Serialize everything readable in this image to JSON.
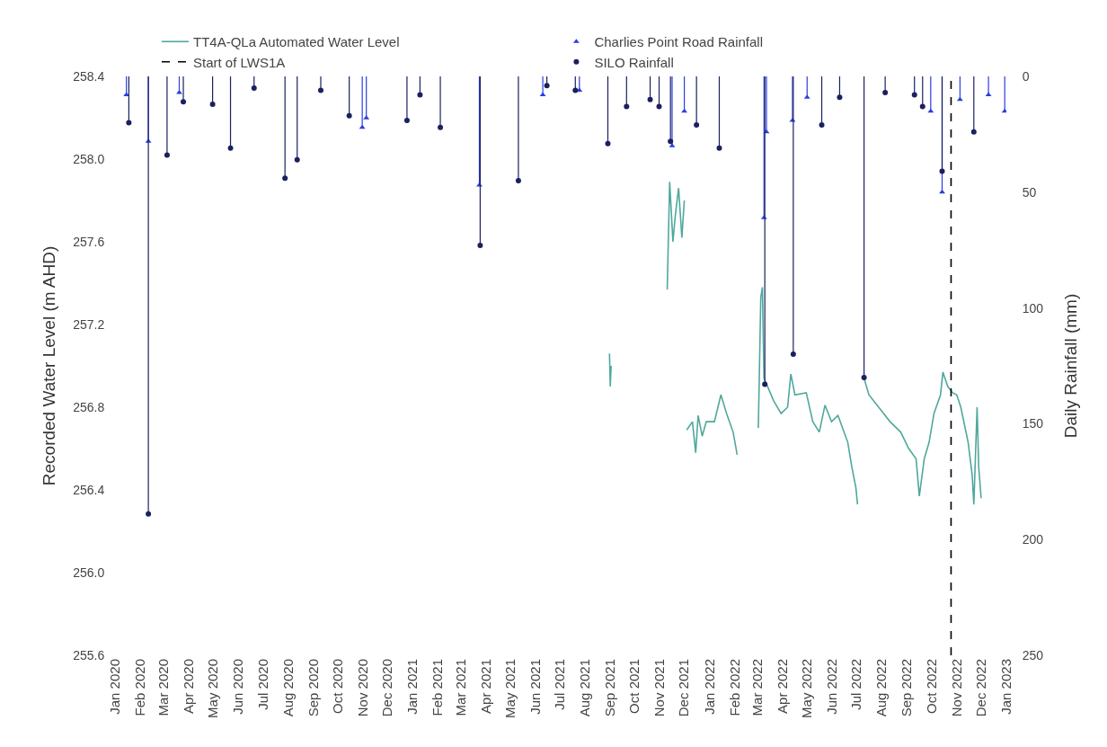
{
  "chart_data": {
    "type": "line",
    "xlabel": null,
    "ylabel": "Recorded Water Level (m AHD)",
    "y2label": "Daily Rainfall (mm)",
    "legend": "top",
    "xlim": [
      "2020-01-01",
      "2023-01-01"
    ],
    "xticks": [
      {
        "value": "2020-01-01",
        "label": "Jan 2020"
      },
      {
        "value": "2020-02-01",
        "label": "Feb 2020"
      },
      {
        "value": "2020-03-01",
        "label": "Mar 2020"
      },
      {
        "value": "2020-04-01",
        "label": "Apr 2020"
      },
      {
        "value": "2020-05-01",
        "label": "May 2020"
      },
      {
        "value": "2020-06-01",
        "label": "Jun 2020"
      },
      {
        "value": "2020-07-01",
        "label": "Jul 2020"
      },
      {
        "value": "2020-08-01",
        "label": "Aug 2020"
      },
      {
        "value": "2020-09-01",
        "label": "Sep 2020"
      },
      {
        "value": "2020-10-01",
        "label": "Oct 2020"
      },
      {
        "value": "2020-11-01",
        "label": "Nov 2020"
      },
      {
        "value": "2020-12-01",
        "label": "Dec 2020"
      },
      {
        "value": "2021-01-01",
        "label": "Jan 2021"
      },
      {
        "value": "2021-02-01",
        "label": "Feb 2021"
      },
      {
        "value": "2021-03-01",
        "label": "Mar 2021"
      },
      {
        "value": "2021-04-01",
        "label": "Apr 2021"
      },
      {
        "value": "2021-05-01",
        "label": "May 2021"
      },
      {
        "value": "2021-06-01",
        "label": "Jun 2021"
      },
      {
        "value": "2021-07-01",
        "label": "Jul 2021"
      },
      {
        "value": "2021-08-01",
        "label": "Aug 2021"
      },
      {
        "value": "2021-09-01",
        "label": "Sep 2021"
      },
      {
        "value": "2021-10-01",
        "label": "Oct 2021"
      },
      {
        "value": "2021-11-01",
        "label": "Nov 2021"
      },
      {
        "value": "2021-12-01",
        "label": "Dec 2021"
      },
      {
        "value": "2022-01-01",
        "label": "Jan 2022"
      },
      {
        "value": "2022-02-01",
        "label": "Feb 2022"
      },
      {
        "value": "2022-03-01",
        "label": "Mar 2022"
      },
      {
        "value": "2022-04-01",
        "label": "Apr 2022"
      },
      {
        "value": "2022-05-01",
        "label": "May 2022"
      },
      {
        "value": "2022-06-01",
        "label": "Jun 2022"
      },
      {
        "value": "2022-07-01",
        "label": "Jul 2022"
      },
      {
        "value": "2022-08-01",
        "label": "Aug 2022"
      },
      {
        "value": "2022-09-01",
        "label": "Sep 2022"
      },
      {
        "value": "2022-10-01",
        "label": "Oct 2022"
      },
      {
        "value": "2022-11-01",
        "label": "Nov 2022"
      },
      {
        "value": "2022-12-01",
        "label": "Dec 2022"
      },
      {
        "value": "2023-01-01",
        "label": "Jan 2023"
      }
    ],
    "ylim": [
      255.6,
      258.4
    ],
    "yticks": [
      255.6,
      {
        "value": 256.0,
        "label": "256.0"
      },
      256.4,
      256.8,
      257.2,
      257.6,
      {
        "value": 258.0,
        "label": "258.0"
      },
      258.4
    ],
    "y2lim": [
      250,
      0
    ],
    "y2ticks": [
      0,
      50,
      100,
      150,
      200,
      250
    ],
    "series": [
      {
        "name": "TT4A-QLa Automated Water Level",
        "color": "#4fa89c",
        "marker": "none",
        "line_style": "solid",
        "x": [
          "2021-08-31",
          "2021-09-01",
          "2021-09-02",
          "2021-09-10",
          "2021-11-10",
          "2021-11-13",
          "2021-11-17",
          "2021-11-20",
          "2021-11-24",
          "2021-11-28",
          "2021-12-01",
          "2021-12-02",
          "2021-12-04",
          "2021-12-11",
          "2021-12-15",
          "2021-12-18",
          "2021-12-23",
          "2021-12-28",
          "2022-01-07",
          "2022-01-15",
          "2022-01-22",
          "2022-01-30",
          "2022-02-04",
          "2022-02-15",
          "2022-03-02",
          "2022-03-03",
          "2022-03-05",
          "2022-03-07",
          "2022-03-09",
          "2022-03-21",
          "2022-03-30",
          "2022-04-07",
          "2022-04-11",
          "2022-04-16",
          "2022-04-30",
          "2022-05-08",
          "2022-05-16",
          "2022-05-23",
          "2022-05-31",
          "2022-06-08",
          "2022-06-20",
          "2022-06-25",
          "2022-06-30",
          "2022-07-02",
          "2022-07-06",
          "2022-07-10",
          "2022-07-16",
          "2022-07-28",
          "2022-08-11",
          "2022-08-24",
          "2022-09-03",
          "2022-09-12",
          "2022-09-16",
          "2022-09-22",
          "2022-09-28",
          "2022-10-04",
          "2022-10-12",
          "2022-10-15",
          "2022-10-21",
          "2022-10-27",
          "2022-11-01",
          "2022-11-06",
          "2022-11-15",
          "2022-11-20",
          "2022-11-22",
          "2022-11-26",
          "2022-11-28",
          "2022-12-01"
        ],
        "values": [
          257.06,
          256.9,
          257.0,
          null,
          257.37,
          257.89,
          257.6,
          257.73,
          257.86,
          257.62,
          257.8,
          null,
          256.69,
          256.73,
          256.58,
          256.76,
          256.66,
          256.73,
          256.73,
          256.86,
          256.77,
          256.68,
          256.57,
          null,
          256.7,
          256.9,
          257.33,
          257.38,
          256.94,
          256.83,
          256.77,
          256.8,
          256.96,
          256.86,
          256.87,
          256.73,
          256.68,
          256.81,
          256.73,
          256.76,
          256.63,
          256.51,
          256.41,
          256.33,
          null,
          256.94,
          256.86,
          256.8,
          256.73,
          256.68,
          256.6,
          256.55,
          256.37,
          256.55,
          256.63,
          256.77,
          256.86,
          256.97,
          256.9,
          256.87,
          256.86,
          256.8,
          256.63,
          256.47,
          256.33,
          256.8,
          256.51,
          256.36
        ]
      },
      {
        "name": "Charlies Point Road Rainfall",
        "type": "lollipop",
        "axis": "y2",
        "color": "#2b3ee0",
        "marker": "triangle",
        "x": [
          "2020-01-15",
          "2020-02-11",
          "2020-03-20",
          "2020-10-31",
          "2020-11-05",
          "2021-03-24",
          "2021-06-10",
          "2021-07-25",
          "2021-11-16",
          "2021-12-01",
          "2022-03-09",
          "2022-03-12",
          "2022-04-13",
          "2022-05-01",
          "2022-09-30",
          "2022-10-14",
          "2022-11-05",
          "2022-12-10",
          "2022-12-30"
        ],
        "values": [
          8,
          28,
          7,
          22,
          18,
          47,
          8,
          6,
          30,
          15,
          61,
          24,
          19,
          9,
          15,
          50,
          10,
          8,
          15
        ]
      },
      {
        "name": "SILO Rainfall",
        "type": "lollipop",
        "axis": "y2",
        "color": "#1b2060",
        "marker": "circle",
        "x": [
          "2020-01-18",
          "2020-02-11",
          "2020-03-05",
          "2020-03-25",
          "2020-04-30",
          "2020-05-22",
          "2020-06-20",
          "2020-07-28",
          "2020-08-12",
          "2020-09-10",
          "2020-10-15",
          "2020-12-25",
          "2021-01-10",
          "2021-02-04",
          "2021-03-25",
          "2021-05-11",
          "2021-06-15",
          "2021-07-20",
          "2021-08-29",
          "2021-09-21",
          "2021-10-20",
          "2021-10-31",
          "2021-11-14",
          "2021-12-16",
          "2022-01-13",
          "2022-03-10",
          "2022-04-14",
          "2022-05-19",
          "2022-06-10",
          "2022-07-10",
          "2022-08-05",
          "2022-09-10",
          "2022-09-20",
          "2022-10-14",
          "2022-11-22"
        ],
        "values": [
          20,
          189,
          34,
          11,
          12,
          31,
          5,
          44,
          36,
          6,
          17,
          19,
          8,
          22,
          73,
          45,
          4,
          6,
          29,
          13,
          10,
          13,
          28,
          21,
          31,
          133,
          120,
          21,
          9,
          130,
          7,
          8,
          13,
          41,
          24
        ]
      }
    ],
    "ref_lines": [
      {
        "axis": "x",
        "value": "2022-10-25",
        "label": "Start of LWS1A",
        "color": "#000000",
        "line_style": "dashed"
      }
    ]
  }
}
